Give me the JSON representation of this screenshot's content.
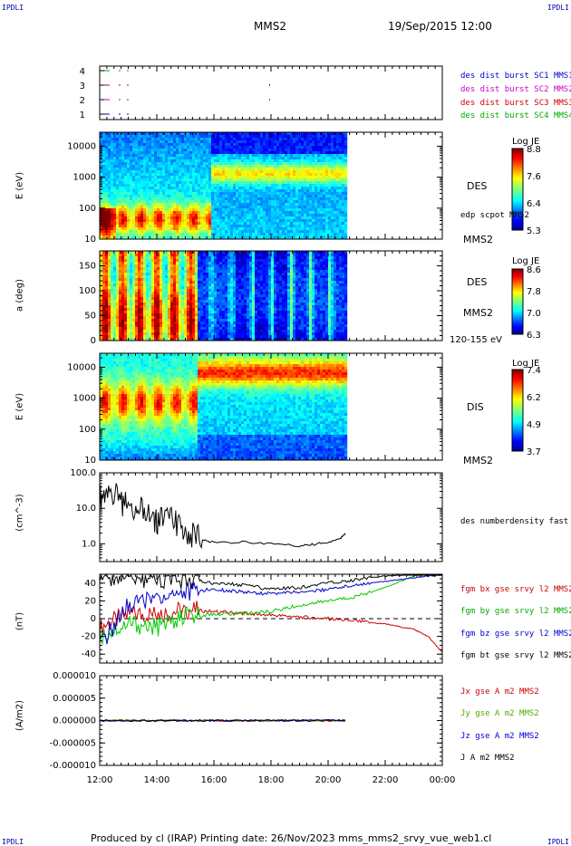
{
  "header": {
    "corner_label": "IPDLI",
    "title": "MMS2",
    "datetime": "19/Sep/2015 12:00"
  },
  "footer": {
    "text": "Produced by cl (IRAP)   Printing date: 26/Nov/2023   mms_mms2_srvy_vue_web1.cl"
  },
  "time_axis": {
    "ticks": [
      "12:00",
      "14:00",
      "16:00",
      "18:00",
      "20:00",
      "22:00",
      "00:00"
    ]
  },
  "panels": {
    "status": {
      "yticks": [
        "4",
        "3",
        "2",
        "1"
      ],
      "legend": [
        {
          "text": "des dist burst SC1 MMS1",
          "color": "#0000cc"
        },
        {
          "text": "des dist burst SC2 MMS2",
          "color": "#cc00cc"
        },
        {
          "text": "des dist burst SC3 MMS3",
          "color": "#cc0000"
        },
        {
          "text": "des dist burst SC4 MMS4",
          "color": "#00aa00"
        }
      ]
    },
    "des_energy": {
      "ylabel": "E (eV)",
      "yticks": [
        "10000",
        "1000",
        "100",
        "10"
      ],
      "label": "DES",
      "sublabel": "edp scpot MMS2",
      "sc": "MMS2",
      "cbar_title": "Log JE",
      "cbar_ticks": [
        "8.8",
        "7.6",
        "6.4",
        "5.3"
      ]
    },
    "des_pitch": {
      "ylabel": "a (deg)",
      "yticks": [
        "150",
        "100",
        "50",
        "0"
      ],
      "label": "DES",
      "sc": "MMS2",
      "range": "120-155 eV",
      "cbar_title": "Log JE",
      "cbar_ticks": [
        "8.6",
        "7.8",
        "7.0",
        "6.3"
      ]
    },
    "dis_energy": {
      "ylabel": "E (eV)",
      "yticks": [
        "10000",
        "1000",
        "100",
        "10"
      ],
      "label": "DIS",
      "sc": "MMS2",
      "cbar_title": "Log JE",
      "cbar_ticks": [
        "7.4",
        "6.2",
        "4.9",
        "3.7"
      ]
    },
    "density": {
      "ylabel": "(cm^-3)",
      "yticks": [
        "100.0",
        "10.0",
        "1.0"
      ],
      "legend": "des numberdensity fast M"
    },
    "bfield": {
      "ylabel": "(nT)",
      "yticks": [
        "40",
        "20",
        "0",
        "-20",
        "-40"
      ],
      "legend": [
        {
          "text": "fgm bx gse srvy l2 MMS2",
          "color": "#cc0000"
        },
        {
          "text": "fgm by gse srvy l2 MMS2",
          "color": "#00aa00"
        },
        {
          "text": "fgm bz gse srvy l2 MMS2",
          "color": "#0000cc"
        },
        {
          "text": "fgm bt gse srvy l2 MMS2",
          "color": "#000000"
        }
      ]
    },
    "current": {
      "ylabel": "(A/m2)",
      "yticks": [
        "0.000010",
        "0.000005",
        "0.000000",
        "-0.000005",
        "-0.000010"
      ],
      "legend": [
        {
          "text": "Jx gse A m2 MMS2",
          "color": "#cc0000"
        },
        {
          "text": "Jy gse A m2 MMS2",
          "color": "#55aa00"
        },
        {
          "text": "Jz gse A m2 MMS2",
          "color": "#0000cc"
        },
        {
          "text": "J A m2 MMS2",
          "color": "#000000"
        }
      ]
    }
  },
  "chart_data": [
    {
      "type": "line",
      "title": "",
      "xlabel": "",
      "ylabel": "",
      "x": [
        "12:00",
        "22:00"
      ],
      "series": [],
      "note_values": "SC burst markers, rows 1-4"
    },
    {
      "type": "heatmap",
      "ylabel": "E (eV)",
      "ylim": [
        10,
        30000
      ],
      "yscale": "log",
      "colorbar": {
        "title": "Log JE",
        "range": [
          5.3,
          8.8
        ]
      },
      "xlim_hours": [
        12,
        24
      ],
      "data_end_hour": 20.6
    },
    {
      "type": "heatmap",
      "ylabel": "a (deg)",
      "ylim": [
        0,
        180
      ],
      "colorbar": {
        "title": "Log JE",
        "range": [
          6.3,
          8.6
        ]
      },
      "xlim_hours": [
        12,
        24
      ],
      "data_end_hour": 20.6
    },
    {
      "type": "heatmap",
      "ylabel": "E (eV)",
      "ylim": [
        10,
        30000
      ],
      "yscale": "log",
      "colorbar": {
        "title": "Log JE",
        "range": [
          3.7,
          7.4
        ]
      },
      "xlim_hours": [
        12,
        24
      ],
      "data_end_hour": 20.6
    },
    {
      "type": "line",
      "ylabel": "(cm^-3)",
      "yscale": "log",
      "ylim": [
        0.3,
        100
      ],
      "series": [
        {
          "name": "des numberdensity fast M",
          "x": [
            12.0,
            12.2,
            12.5,
            12.8,
            13.0,
            13.3,
            13.6,
            13.9,
            14.1,
            14.4,
            14.7,
            15.0,
            15.3,
            15.6,
            16.0,
            17.0,
            18.0,
            19.0,
            19.5,
            20.0,
            20.4,
            20.6
          ],
          "values": [
            20,
            28,
            25,
            12,
            18,
            9,
            10,
            3,
            6,
            5,
            4,
            2,
            1.6,
            1.3,
            1.1,
            1.1,
            1.05,
            0.85,
            0.95,
            1.1,
            1.3,
            2.0
          ]
        }
      ]
    },
    {
      "type": "line",
      "ylabel": "(nT)",
      "ylim": [
        -50,
        50
      ],
      "x": [
        12.0,
        13.0,
        14.0,
        15.0,
        16.0,
        17.0,
        18.0,
        19.0,
        20.0,
        21.0,
        22.0,
        23.0,
        23.5,
        24.0
      ],
      "series": [
        {
          "name": "fgm bx gse srvy l2 MMS2",
          "values": [
            -10,
            5,
            5,
            10,
            8,
            6,
            4,
            2,
            0,
            -3,
            -6,
            -12,
            -20,
            -38
          ]
        },
        {
          "name": "fgm by gse srvy l2 MMS2",
          "values": [
            -20,
            -5,
            -10,
            2,
            5,
            6,
            8,
            15,
            20,
            25,
            35,
            48,
            50,
            50
          ]
        },
        {
          "name": "fgm bz gse srvy l2 MMS2",
          "values": [
            -30,
            15,
            25,
            30,
            33,
            30,
            28,
            30,
            33,
            38,
            42,
            46,
            48,
            49
          ]
        },
        {
          "name": "fgm bt gse srvy l2 MMS2",
          "values": [
            48,
            45,
            44,
            44,
            40,
            38,
            33,
            35,
            40,
            44,
            48,
            50,
            50,
            50
          ]
        }
      ]
    },
    {
      "type": "line",
      "ylabel": "(A/m2)",
      "ylim": [
        -1e-05,
        1e-05
      ],
      "x": [
        12,
        20.6
      ],
      "series": [
        {
          "name": "Jx gse A m2 MMS2",
          "values": [
            0,
            0
          ]
        },
        {
          "name": "Jy gse A m2 MMS2",
          "values": [
            0,
            0
          ]
        },
        {
          "name": "Jz gse A m2 MMS2",
          "values": [
            0,
            0
          ]
        },
        {
          "name": "J A m2 MMS2",
          "values": [
            0,
            0
          ]
        }
      ]
    }
  ]
}
